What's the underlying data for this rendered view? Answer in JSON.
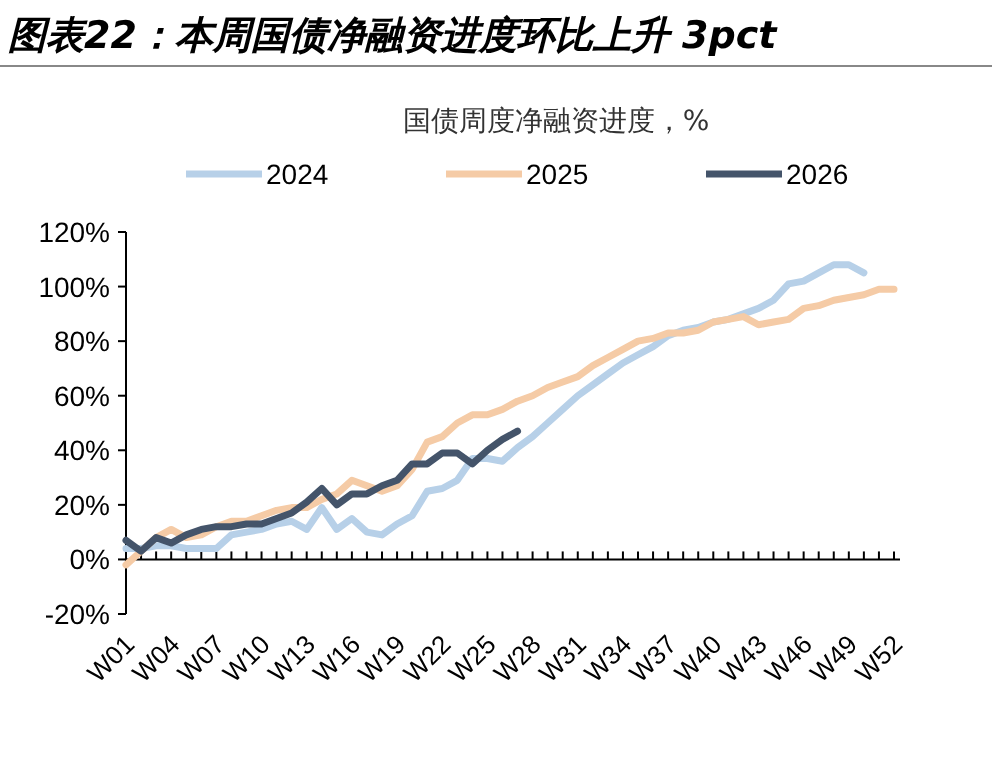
{
  "chart_data": {
    "type": "line",
    "title": "图表22：本周国债净融资进度环比上升 3pct",
    "subtitle": "国债周度净融资进度，%",
    "categories": [
      "W01",
      null,
      null,
      "W04",
      null,
      null,
      "W07",
      null,
      null,
      "W10",
      null,
      null,
      "W13",
      null,
      null,
      "W16",
      null,
      null,
      "W19",
      null,
      null,
      "W22",
      null,
      null,
      "W25",
      null,
      null,
      "W28",
      null,
      null,
      "W31",
      null,
      null,
      "W34",
      null,
      null,
      "W37",
      null,
      null,
      "W40",
      null,
      null,
      "W43",
      null,
      null,
      "W46",
      null,
      null,
      "W49",
      null,
      null,
      "W52"
    ],
    "series": [
      {
        "name": "2024",
        "color": "#b7d0e8",
        "values": [
          4,
          4,
          5,
          5,
          4,
          4,
          4,
          9,
          10,
          11,
          13,
          14,
          11,
          19,
          11,
          15,
          10,
          9,
          13,
          16,
          25,
          26,
          29,
          37,
          37,
          36,
          41,
          45,
          50,
          55,
          60,
          64,
          68,
          72,
          75,
          78,
          82,
          84,
          85,
          87,
          88,
          90,
          92,
          95,
          101,
          102,
          105,
          108,
          108,
          105,
          null,
          null
        ]
      },
      {
        "name": "2025",
        "color": "#f5cba6",
        "values": [
          -2,
          3,
          8,
          11,
          8,
          9,
          12,
          14,
          14,
          16,
          18,
          19,
          19,
          22,
          24,
          29,
          27,
          25,
          27,
          33,
          43,
          45,
          50,
          53,
          53,
          55,
          58,
          60,
          63,
          65,
          67,
          71,
          74,
          77,
          80,
          81,
          83,
          83,
          84,
          87,
          88,
          89,
          86,
          87,
          88,
          92,
          93,
          95,
          96,
          97,
          99,
          99
        ]
      },
      {
        "name": "2026",
        "color": "#44546a",
        "values": [
          7,
          3,
          8,
          6,
          9,
          11,
          12,
          12,
          13,
          13,
          15,
          17,
          21,
          26,
          20,
          24,
          24,
          27,
          29,
          35,
          35,
          39,
          39,
          35,
          40,
          44,
          47,
          null,
          null,
          null,
          null,
          null,
          null,
          null,
          null,
          null,
          null,
          null,
          null,
          null,
          null,
          null,
          null,
          null,
          null,
          null,
          null,
          null,
          null,
          null,
          null,
          null
        ]
      }
    ],
    "ylim": [
      -20,
      120
    ],
    "yticks": [
      {
        "value": -20,
        "label": "-20%"
      },
      {
        "value": 0,
        "label": "0%"
      },
      {
        "value": 20,
        "label": "20%"
      },
      {
        "value": 40,
        "label": "40%"
      },
      {
        "value": 60,
        "label": "60%"
      },
      {
        "value": 80,
        "label": "80%"
      },
      {
        "value": 100,
        "label": "100%"
      },
      {
        "value": 120,
        "label": "120%"
      }
    ],
    "legend": "top",
    "marker": "none",
    "line_style": "solid"
  }
}
